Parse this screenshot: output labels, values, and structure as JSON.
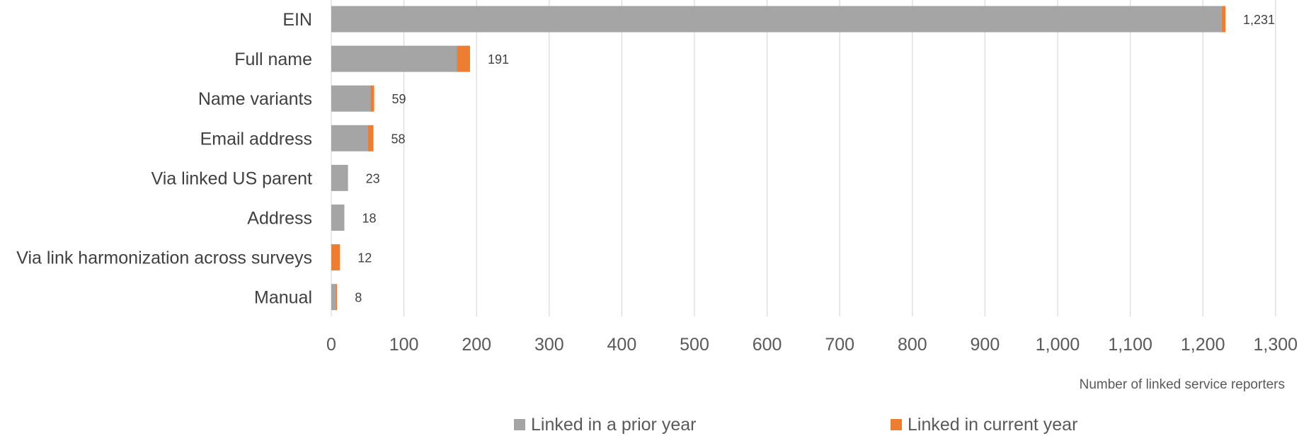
{
  "chart_data": {
    "type": "bar",
    "orientation": "horizontal",
    "stacked": true,
    "categories": [
      "EIN",
      "Full name",
      "Name variants",
      "Email address",
      "Via linked US parent",
      "Address",
      "Via link harmonization across surveys",
      "Manual"
    ],
    "series": [
      {
        "name": "Linked in a prior year",
        "color": "#a5a5a5",
        "values": [
          1226,
          173,
          54,
          50,
          23,
          18,
          0,
          6
        ]
      },
      {
        "name": "Linked in current year",
        "color": "#ed7d31",
        "values": [
          5,
          18,
          5,
          8,
          0,
          0,
          12,
          2
        ]
      }
    ],
    "totals": [
      "1,231",
      "191",
      "59",
      "58",
      "23",
      "18",
      "12",
      "8"
    ],
    "xlabel": "Number of linked service reporters",
    "ylabel": "",
    "xlim": [
      0,
      1300
    ],
    "xticks": [
      0,
      100,
      200,
      300,
      400,
      500,
      600,
      700,
      800,
      900,
      1000,
      1100,
      1200,
      1300
    ],
    "xtick_labels": [
      "0",
      "100",
      "200",
      "300",
      "400",
      "500",
      "600",
      "700",
      "800",
      "900",
      "1,000",
      "1,100",
      "1,200",
      "1,300"
    ],
    "grid": "vertical",
    "legend_position": "bottom"
  }
}
